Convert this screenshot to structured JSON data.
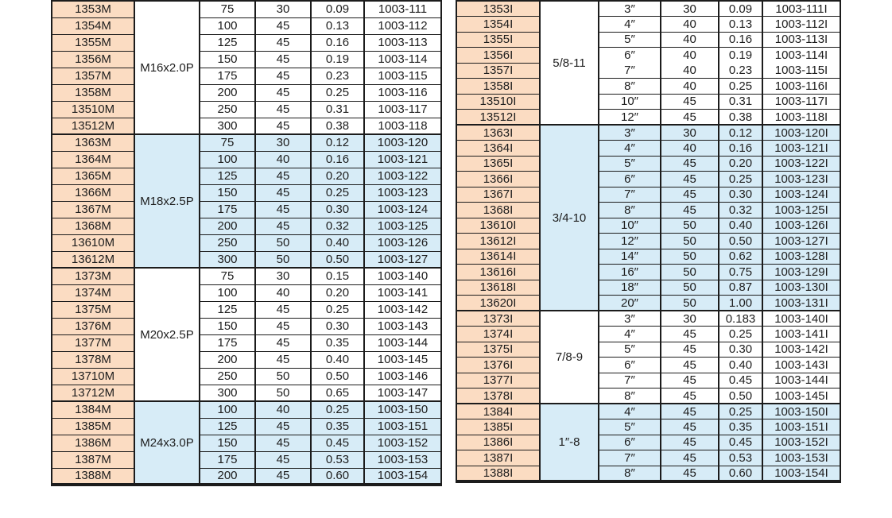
{
  "colors": {
    "part_column_bg": "#fbdcc2",
    "alt_group_bg": "#d7ecf7",
    "plain_group_bg": "#ffffff",
    "border": "#1c1c1c",
    "text": "#1d1d1d"
  },
  "columns_legend": [
    "part_no",
    "size",
    "width",
    "weight",
    "order_no"
  ],
  "tables": [
    {
      "name": "metric",
      "groups": [
        {
          "thread": "M16x2.0P",
          "shade": "white",
          "rows": [
            [
              "1353M",
              "75",
              "30",
              "0.09",
              "1003-111"
            ],
            [
              "1354M",
              "100",
              "45",
              "0.13",
              "1003-112"
            ],
            [
              "1355M",
              "125",
              "45",
              "0.16",
              "1003-113"
            ],
            [
              "1356M",
              "150",
              "45",
              "0.19",
              "1003-114"
            ],
            [
              "1357M",
              "175",
              "45",
              "0.23",
              "1003-115"
            ],
            [
              "1358M",
              "200",
              "45",
              "0.25",
              "1003-116"
            ],
            [
              "13510M",
              "250",
              "45",
              "0.31",
              "1003-117"
            ],
            [
              "13512M",
              "300",
              "45",
              "0.38",
              "1003-118"
            ]
          ]
        },
        {
          "thread": "M18x2.5P",
          "shade": "blue",
          "rows": [
            [
              "1363M",
              "75",
              "30",
              "0.12",
              "1003-120"
            ],
            [
              "1364M",
              "100",
              "40",
              "0.16",
              "1003-121"
            ],
            [
              "1365M",
              "125",
              "45",
              "0.20",
              "1003-122"
            ],
            [
              "1366M",
              "150",
              "45",
              "0.25",
              "1003-123"
            ],
            [
              "1367M",
              "175",
              "45",
              "0.30",
              "1003-124"
            ],
            [
              "1368M",
              "200",
              "45",
              "0.32",
              "1003-125"
            ],
            [
              "13610M",
              "250",
              "50",
              "0.40",
              "1003-126"
            ],
            [
              "13612M",
              "300",
              "50",
              "0.50",
              "1003-127"
            ]
          ]
        },
        {
          "thread": "M20x2.5P",
          "shade": "white",
          "rows": [
            [
              "1373M",
              "75",
              "30",
              "0.15",
              "1003-140"
            ],
            [
              "1374M",
              "100",
              "40",
              "0.20",
              "1003-141"
            ],
            [
              "1375M",
              "125",
              "45",
              "0.25",
              "1003-142"
            ],
            [
              "1376M",
              "150",
              "45",
              "0.30",
              "1003-143"
            ],
            [
              "1377M",
              "175",
              "45",
              "0.35",
              "1003-144"
            ],
            [
              "1378M",
              "200",
              "45",
              "0.40",
              "1003-145"
            ],
            [
              "13710M",
              "250",
              "50",
              "0.50",
              "1003-146"
            ],
            [
              "13712M",
              "300",
              "50",
              "0.65",
              "1003-147"
            ]
          ]
        },
        {
          "thread": "M24x3.0P",
          "shade": "blue",
          "rows": [
            [
              "1384M",
              "100",
              "40",
              "0.25",
              "1003-150"
            ],
            [
              "1385M",
              "125",
              "45",
              "0.35",
              "1003-151"
            ],
            [
              "1386M",
              "150",
              "45",
              "0.45",
              "1003-152"
            ],
            [
              "1387M",
              "175",
              "45",
              "0.53",
              "1003-153"
            ],
            [
              "1388M",
              "200",
              "45",
              "0.60",
              "1003-154"
            ]
          ]
        }
      ]
    },
    {
      "name": "inch",
      "border_gaps": [
        {
          "group": 0,
          "after_row": 3
        }
      ],
      "groups": [
        {
          "thread": "5/8-11",
          "shade": "white",
          "rows": [
            [
              "1353I",
              "3″",
              "30",
              "0.09",
              "1003-111I"
            ],
            [
              "1354I",
              "4″",
              "40",
              "0.13",
              "1003-112I"
            ],
            [
              "1355I",
              "5″",
              "40",
              "0.16",
              "1003-113I"
            ],
            [
              "1356I",
              "6″",
              "40",
              "0.19",
              "1003-114I"
            ],
            [
              "1357I",
              "7″",
              "40",
              "0.23",
              "1003-115I"
            ],
            [
              "1358I",
              "8″",
              "40",
              "0.25",
              "1003-116I"
            ],
            [
              "13510I",
              "10″",
              "45",
              "0.31",
              "1003-117I"
            ],
            [
              "13512I",
              "12″",
              "45",
              "0.38",
              "1003-118I"
            ]
          ]
        },
        {
          "thread": "3/4-10",
          "shade": "blue",
          "rows": [
            [
              "1363I",
              "3″",
              "30",
              "0.12",
              "1003-120I"
            ],
            [
              "1364I",
              "4″",
              "40",
              "0.16",
              "1003-121I"
            ],
            [
              "1365I",
              "5″",
              "45",
              "0.20",
              "1003-122I"
            ],
            [
              "1366I",
              "6″",
              "45",
              "0.25",
              "1003-123I"
            ],
            [
              "1367I",
              "7″",
              "45",
              "0.30",
              "1003-124I"
            ],
            [
              "1368I",
              "8″",
              "45",
              "0.32",
              "1003-125I"
            ],
            [
              "13610I",
              "10″",
              "50",
              "0.40",
              "1003-126I"
            ],
            [
              "13612I",
              "12″",
              "50",
              "0.50",
              "1003-127I"
            ],
            [
              "13614I",
              "14″",
              "50",
              "0.62",
              "1003-128I"
            ],
            [
              "13616I",
              "16″",
              "50",
              "0.75",
              "1003-129I"
            ],
            [
              "13618I",
              "18″",
              "50",
              "0.87",
              "1003-130I"
            ],
            [
              "13620I",
              "20″",
              "50",
              "1.00",
              "1003-131I"
            ]
          ]
        },
        {
          "thread": "7/8-9",
          "shade": "white",
          "rows": [
            [
              "1373I",
              "3″",
              "30",
              "0.183",
              "1003-140I"
            ],
            [
              "1374I",
              "4″",
              "45",
              "0.25",
              "1003-141I"
            ],
            [
              "1375I",
              "5″",
              "45",
              "0.30",
              "1003-142I"
            ],
            [
              "1376I",
              "6″",
              "45",
              "0.40",
              "1003-143I"
            ],
            [
              "1377I",
              "7″",
              "45",
              "0.45",
              "1003-144I"
            ],
            [
              "1378I",
              "8″",
              "45",
              "0.50",
              "1003-145I"
            ]
          ]
        },
        {
          "thread": "1″-8",
          "shade": "blue",
          "rows": [
            [
              "1384I",
              "4″",
              "45",
              "0.25",
              "1003-150I"
            ],
            [
              "1385I",
              "5″",
              "45",
              "0.35",
              "1003-151I"
            ],
            [
              "1386I",
              "6″",
              "45",
              "0.45",
              "1003-152I"
            ],
            [
              "1387I",
              "7″",
              "45",
              "0.53",
              "1003-153I"
            ],
            [
              "1388I",
              "8″",
              "45",
              "0.60",
              "1003-154I"
            ]
          ]
        }
      ]
    }
  ]
}
